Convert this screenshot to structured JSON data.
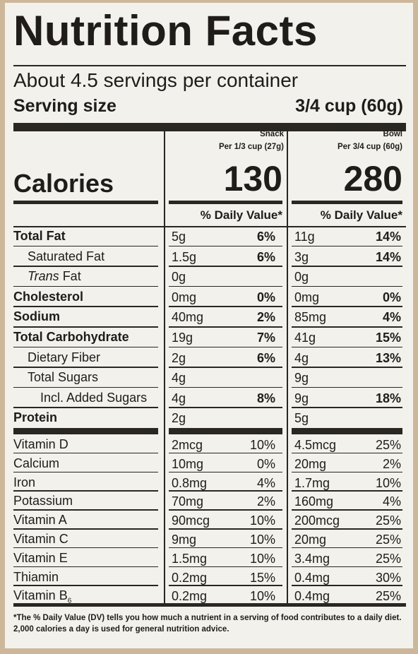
{
  "title": "Nutrition Facts",
  "servings_per_container": "About 4.5 servings per container",
  "serving_size_label": "Serving size",
  "serving_size_value": "3/4 cup (60g)",
  "columns": [
    {
      "name": "Snack",
      "per": "Per 1/3 cup (27g)",
      "calories": "130"
    },
    {
      "name": "Bowl",
      "per": "Per 3/4 cup (60g)",
      "calories": "280"
    }
  ],
  "calories_label": "Calories",
  "dv_header": "% Daily Value*",
  "nutrients": [
    {
      "name": "Total Fat",
      "snack_amt": "5g",
      "snack_dv": "6%",
      "bowl_amt": "11g",
      "bowl_dv": "14%"
    },
    {
      "name": "Saturated Fat",
      "snack_amt": "1.5g",
      "snack_dv": "6%",
      "bowl_amt": "3g",
      "bowl_dv": "14%"
    },
    {
      "name_italic": "Trans",
      "name": " Fat",
      "snack_amt": "0g",
      "snack_dv": "",
      "bowl_amt": "0g",
      "bowl_dv": ""
    },
    {
      "name": "Cholesterol",
      "snack_amt": "0mg",
      "snack_dv": "0%",
      "bowl_amt": "0mg",
      "bowl_dv": "0%"
    },
    {
      "name": "Sodium",
      "snack_amt": "40mg",
      "snack_dv": "2%",
      "bowl_amt": "85mg",
      "bowl_dv": "4%"
    },
    {
      "name": "Total Carbohydrate",
      "snack_amt": "19g",
      "snack_dv": "7%",
      "bowl_amt": "41g",
      "bowl_dv": "15%"
    },
    {
      "name": "Dietary Fiber",
      "snack_amt": "2g",
      "snack_dv": "6%",
      "bowl_amt": "4g",
      "bowl_dv": "13%"
    },
    {
      "name": "Total Sugars",
      "snack_amt": "4g",
      "snack_dv": "",
      "bowl_amt": "9g",
      "bowl_dv": ""
    },
    {
      "name": "Incl. Added Sugars",
      "snack_amt": "4g",
      "snack_dv": "8%",
      "bowl_amt": "9g",
      "bowl_dv": "18%"
    },
    {
      "name": "Protein",
      "snack_amt": "2g",
      "snack_dv": "",
      "bowl_amt": "5g",
      "bowl_dv": ""
    }
  ],
  "vitamins": [
    {
      "name": "Vitamin D",
      "snack_amt": "2mcg",
      "snack_dv": "10%",
      "bowl_amt": "4.5mcg",
      "bowl_dv": "25%"
    },
    {
      "name": "Calcium",
      "snack_amt": "10mg",
      "snack_dv": "0%",
      "bowl_amt": "20mg",
      "bowl_dv": "2%"
    },
    {
      "name": "Iron",
      "snack_amt": "0.8mg",
      "snack_dv": "4%",
      "bowl_amt": "1.7mg",
      "bowl_dv": "10%"
    },
    {
      "name": "Potassium",
      "snack_amt": "70mg",
      "snack_dv": "2%",
      "bowl_amt": "160mg",
      "bowl_dv": "4%"
    },
    {
      "name": "Vitamin A",
      "snack_amt": "90mcg",
      "snack_dv": "10%",
      "bowl_amt": "200mcg",
      "bowl_dv": "25%"
    },
    {
      "name": "Vitamin C",
      "snack_amt": "9mg",
      "snack_dv": "10%",
      "bowl_amt": "20mg",
      "bowl_dv": "25%"
    },
    {
      "name": "Vitamin E",
      "snack_amt": "1.5mg",
      "snack_dv": "10%",
      "bowl_amt": "3.4mg",
      "bowl_dv": "25%"
    },
    {
      "name": "Thiamin",
      "snack_amt": "0.2mg",
      "snack_dv": "15%",
      "bowl_amt": "0.4mg",
      "bowl_dv": "30%"
    },
    {
      "name": "Vitamin B",
      "name_sub": "6",
      "snack_amt": "0.2mg",
      "snack_dv": "10%",
      "bowl_amt": "0.4mg",
      "bowl_dv": "25%"
    }
  ],
  "footnote": "*The % Daily Value (DV) tells you how much a nutrient in a serving of food contributes to a daily diet. 2,000 calories a day is used for general nutrition advice.",
  "colors": {
    "ink": "#2a2622",
    "label_bg": "#f3f1ec",
    "package_bg": "#cdb79a"
  }
}
